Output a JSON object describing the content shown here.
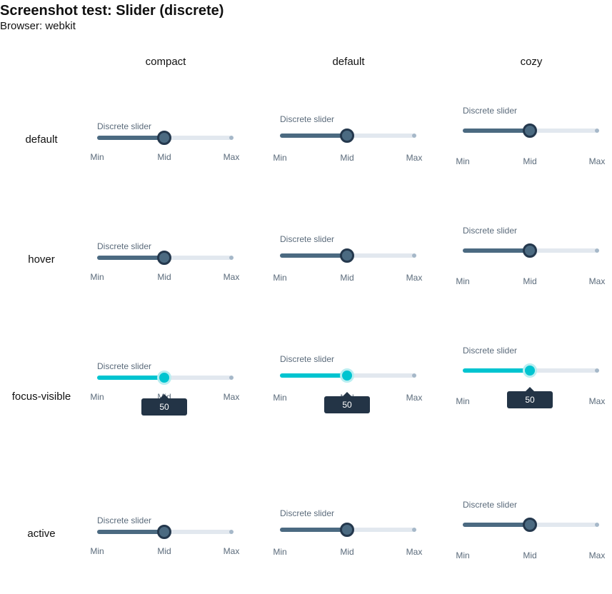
{
  "page": {
    "title": "Screenshot test: Slider (discrete)",
    "subtitle": "Browser: webkit"
  },
  "columns": [
    "compact",
    "default",
    "cozy"
  ],
  "rows": [
    "default",
    "hover",
    "focus-visible",
    "active"
  ],
  "slider": {
    "label": "Discrete slider",
    "min": 0,
    "max": 100,
    "value": 50,
    "marks": [
      "Min",
      "Mid",
      "Max"
    ],
    "tooltip_value": "50"
  },
  "colors": {
    "fill": "#4b6a81",
    "thumb_border": "#24384d",
    "track": "#e2e8ef",
    "focus_fill": "#00c4d0",
    "tooltip": "#233446",
    "label": "#5b6b7b"
  }
}
